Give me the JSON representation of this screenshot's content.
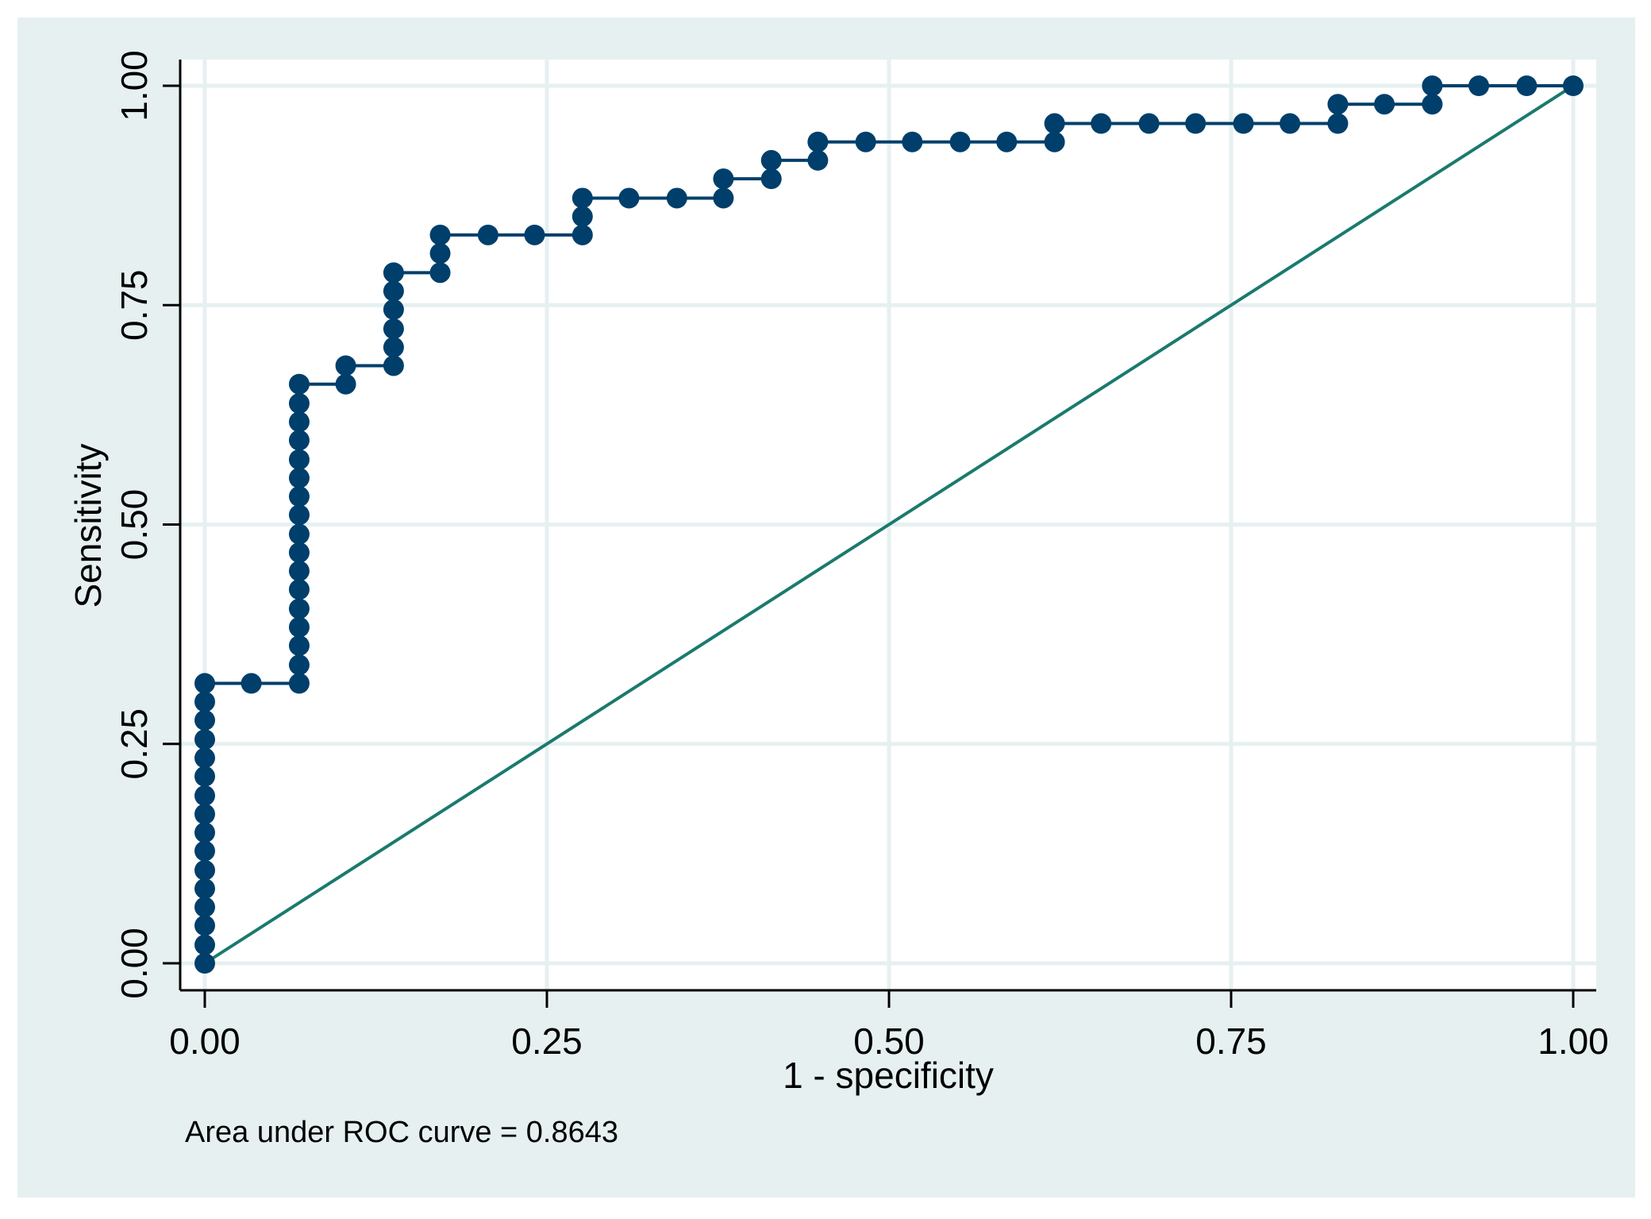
{
  "chart_data": {
    "type": "line",
    "xlabel": "1 - specificity",
    "ylabel": "Sensitivity",
    "note": "Area under ROC curve = 0.8643",
    "xlim": [
      0,
      1
    ],
    "ylim": [
      0,
      1
    ],
    "x_ticks": [
      0,
      0.25,
      0.5,
      0.75,
      1
    ],
    "y_ticks": [
      0,
      0.25,
      0.5,
      0.75,
      1
    ],
    "x_tick_labels": [
      "0.00",
      "0.25",
      "0.50",
      "0.75",
      "1.00"
    ],
    "y_tick_labels": [
      "0.00",
      "0.25",
      "0.50",
      "0.75",
      "1.00"
    ],
    "grid": true,
    "legend": "none",
    "colors": {
      "outer_background": "#e6f0f0",
      "plot_background": "#ffffff",
      "grid": "#e6f0f0",
      "roc_curve": "#003f6b",
      "reference_line": "#1a7a6e"
    },
    "series": [
      {
        "kind": "roc-curve",
        "points": [
          [
            0.0,
            0.0
          ],
          [
            0.0,
            0.021
          ],
          [
            0.0,
            0.043
          ],
          [
            0.0,
            0.064
          ],
          [
            0.0,
            0.085
          ],
          [
            0.0,
            0.106
          ],
          [
            0.0,
            0.128
          ],
          [
            0.0,
            0.149
          ],
          [
            0.0,
            0.17
          ],
          [
            0.0,
            0.191
          ],
          [
            0.0,
            0.213
          ],
          [
            0.0,
            0.234
          ],
          [
            0.0,
            0.255
          ],
          [
            0.0,
            0.277
          ],
          [
            0.0,
            0.298
          ],
          [
            0.0,
            0.319
          ],
          [
            0.034,
            0.319
          ],
          [
            0.069,
            0.319
          ],
          [
            0.069,
            0.34
          ],
          [
            0.069,
            0.362
          ],
          [
            0.069,
            0.383
          ],
          [
            0.069,
            0.404
          ],
          [
            0.069,
            0.426
          ],
          [
            0.069,
            0.447
          ],
          [
            0.069,
            0.468
          ],
          [
            0.069,
            0.489
          ],
          [
            0.069,
            0.511
          ],
          [
            0.069,
            0.532
          ],
          [
            0.069,
            0.553
          ],
          [
            0.069,
            0.574
          ],
          [
            0.069,
            0.596
          ],
          [
            0.069,
            0.617
          ],
          [
            0.069,
            0.638
          ],
          [
            0.069,
            0.66
          ],
          [
            0.103,
            0.66
          ],
          [
            0.103,
            0.681
          ],
          [
            0.138,
            0.681
          ],
          [
            0.138,
            0.702
          ],
          [
            0.138,
            0.723
          ],
          [
            0.138,
            0.745
          ],
          [
            0.138,
            0.766
          ],
          [
            0.138,
            0.787
          ],
          [
            0.172,
            0.787
          ],
          [
            0.172,
            0.809
          ],
          [
            0.172,
            0.83
          ],
          [
            0.207,
            0.83
          ],
          [
            0.241,
            0.83
          ],
          [
            0.276,
            0.83
          ],
          [
            0.276,
            0.851
          ],
          [
            0.276,
            0.872
          ],
          [
            0.31,
            0.872
          ],
          [
            0.345,
            0.872
          ],
          [
            0.379,
            0.872
          ],
          [
            0.379,
            0.894
          ],
          [
            0.414,
            0.894
          ],
          [
            0.414,
            0.915
          ],
          [
            0.448,
            0.915
          ],
          [
            0.448,
            0.936
          ],
          [
            0.483,
            0.936
          ],
          [
            0.517,
            0.936
          ],
          [
            0.552,
            0.936
          ],
          [
            0.586,
            0.936
          ],
          [
            0.621,
            0.936
          ],
          [
            0.621,
            0.957
          ],
          [
            0.655,
            0.957
          ],
          [
            0.69,
            0.957
          ],
          [
            0.724,
            0.957
          ],
          [
            0.759,
            0.957
          ],
          [
            0.793,
            0.957
          ],
          [
            0.828,
            0.957
          ],
          [
            0.828,
            0.979
          ],
          [
            0.862,
            0.979
          ],
          [
            0.897,
            0.979
          ],
          [
            0.897,
            1.0
          ],
          [
            0.931,
            1.0
          ],
          [
            0.966,
            1.0
          ],
          [
            1.0,
            1.0
          ]
        ]
      },
      {
        "kind": "reference-line",
        "points": [
          [
            0,
            0
          ],
          [
            1,
            1
          ]
        ]
      }
    ]
  }
}
